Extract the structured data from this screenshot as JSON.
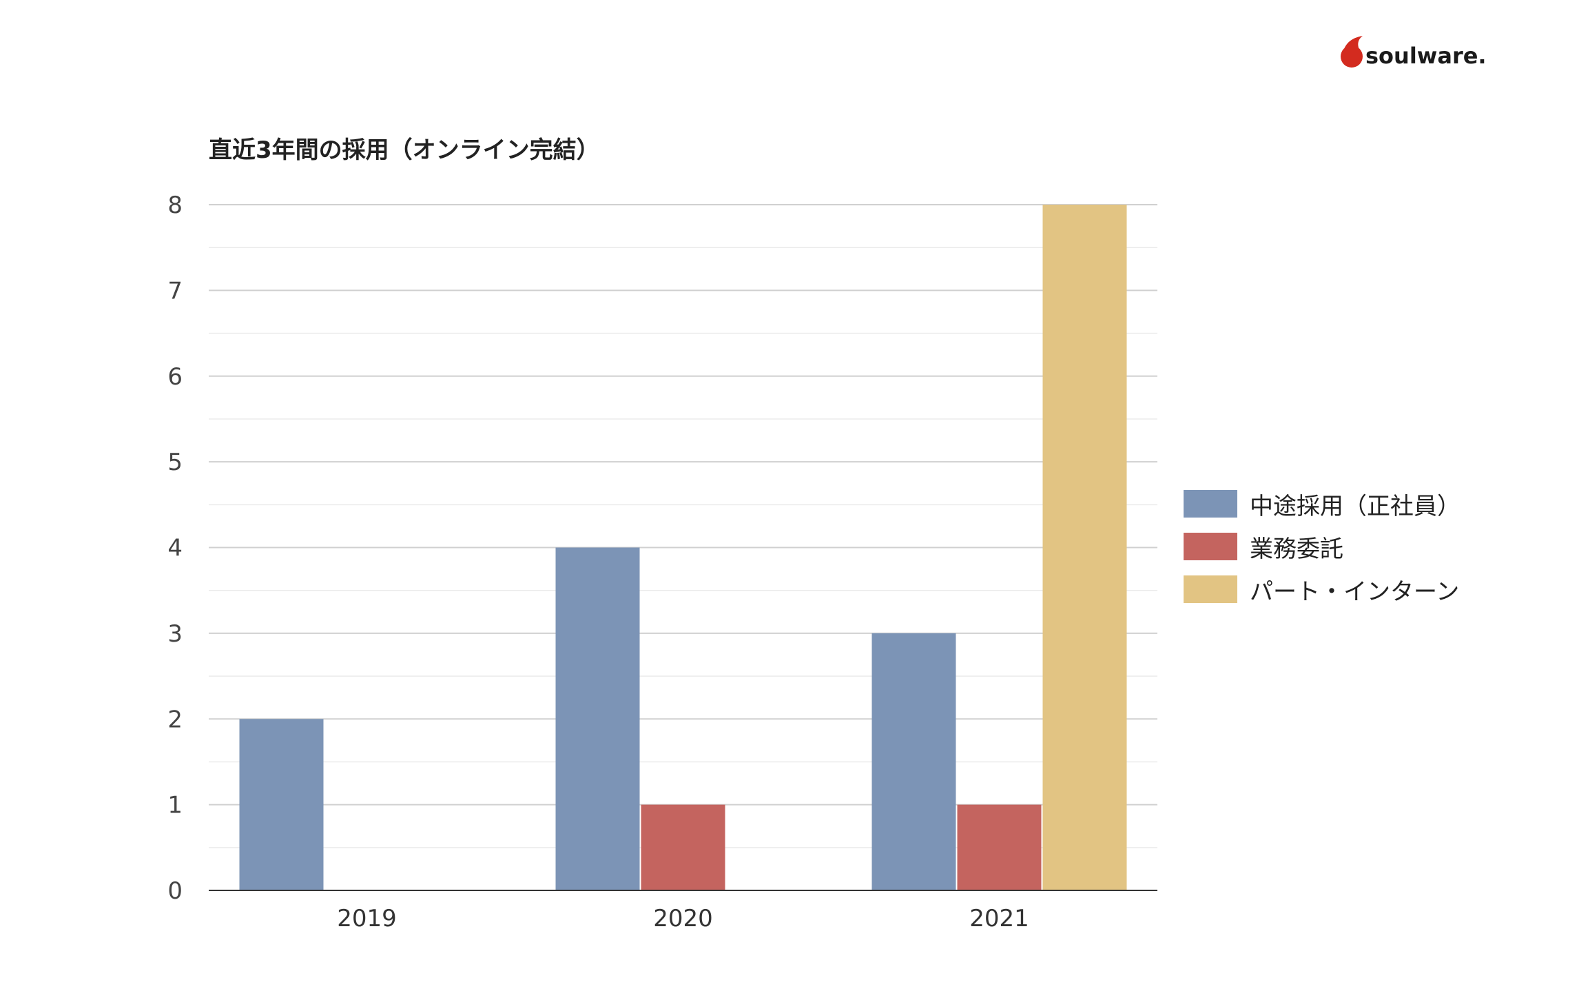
{
  "logo": {
    "text": "soulware."
  },
  "colors": {
    "grid": "#d0d0d0",
    "axis": "#333333",
    "text": "#444444"
  },
  "chart_data": {
    "type": "bar",
    "title": "直近3年間の採用（オンライン完結）",
    "xlabel": "",
    "ylabel": "",
    "categories": [
      "2019",
      "2020",
      "2021"
    ],
    "series": [
      {
        "name": "中途採用（正社員）",
        "color": "#7c94b6",
        "values": [
          2,
          4,
          3
        ]
      },
      {
        "name": "業務委託",
        "color": "#c4645f",
        "values": [
          0,
          1,
          1
        ]
      },
      {
        "name": "パート・インターン",
        "color": "#e2c483",
        "values": [
          0,
          0,
          8
        ]
      }
    ],
    "ylim": [
      0,
      8
    ],
    "yticks": [
      0,
      1,
      2,
      3,
      4,
      5,
      6,
      7,
      8
    ],
    "grid": true,
    "legend": "right"
  }
}
